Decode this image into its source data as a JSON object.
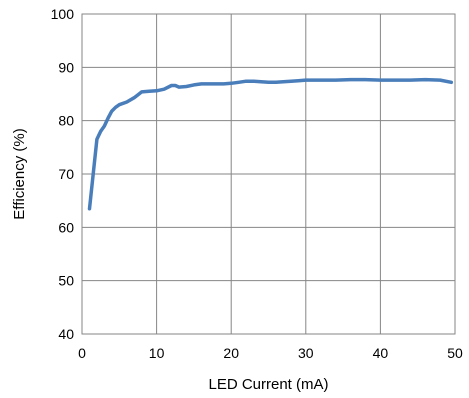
{
  "chart_data": {
    "type": "line",
    "xlabel": "LED Current (mA)",
    "ylabel": "Efficiency (%)",
    "xlim": [
      0,
      50
    ],
    "ylim": [
      40,
      100
    ],
    "xticks": [
      0,
      10,
      20,
      30,
      40,
      50
    ],
    "yticks": [
      40,
      50,
      60,
      70,
      80,
      90,
      100
    ],
    "grid": true,
    "series": [
      {
        "color": "#4a7ebb",
        "x": [
          1,
          1.5,
          2,
          2.5,
          3,
          3.5,
          4,
          4.5,
          5,
          6,
          7,
          8,
          9,
          10,
          11,
          12,
          12.5,
          13,
          14,
          15,
          16,
          17,
          18,
          19,
          20,
          21,
          22,
          23,
          24,
          25,
          26,
          27,
          28,
          29,
          30,
          32,
          34,
          36,
          38,
          40,
          42,
          44,
          46,
          48,
          49.5
        ],
        "y": [
          63.5,
          70,
          76.5,
          78,
          79,
          80.5,
          81.8,
          82.5,
          83,
          83.5,
          84.3,
          85.4,
          85.5,
          85.6,
          85.9,
          86.6,
          86.6,
          86.3,
          86.4,
          86.7,
          86.9,
          86.9,
          86.9,
          86.9,
          87,
          87.2,
          87.4,
          87.4,
          87.3,
          87.2,
          87.2,
          87.3,
          87.4,
          87.5,
          87.6,
          87.6,
          87.6,
          87.7,
          87.7,
          87.6,
          87.6,
          87.6,
          87.7,
          87.6,
          87.2
        ]
      }
    ]
  }
}
